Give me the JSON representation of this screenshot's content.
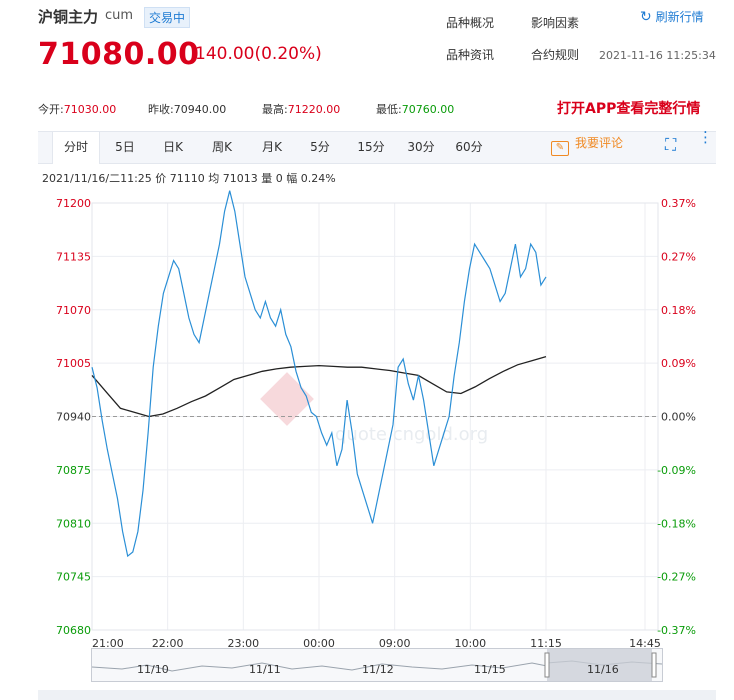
{
  "header": {
    "title": "沪铜主力",
    "code": "cum",
    "status": "交易中",
    "links": [
      "品种概况",
      "影响因素",
      "品种资讯",
      "合约规则"
    ],
    "refresh_label": "刷新行情",
    "price": "71080.00",
    "change": "140.00(0.20%)",
    "timestamp": "2021-11-16 11:25:34"
  },
  "stats": {
    "open_label": "今开:",
    "open": "71030.00",
    "prev_label": "昨收:",
    "prev": "70940.00",
    "high_label": "最高:",
    "high": "71220.00",
    "low_label": "最低:",
    "low": "70760.00"
  },
  "app_promo": "打开APP查看完整行情",
  "tabs": [
    "分时",
    "5日",
    "日K",
    "周K",
    "月K",
    "5分",
    "15分",
    "30分",
    "60分"
  ],
  "comment_label": "我要评论",
  "info_line": "2021/11/16/二11:25  价 71110  均 71013  量 0  幅 0.24%",
  "watermark": "quote.cngold.org",
  "colors": {
    "up": "#d9001b",
    "down": "#0a9c0a",
    "price_line": "#2b8fd6",
    "avg_line": "#222222",
    "accent": "#1e7bd3"
  },
  "chart_data": {
    "type": "line",
    "ylim": [
      70680,
      71200
    ],
    "y_ticks": [
      "71200",
      "71135",
      "71070",
      "71005",
      "70940",
      "70875",
      "70810",
      "70745",
      "70680"
    ],
    "pct_ticks": [
      "0.37%",
      "0.27%",
      "0.18%",
      "0.09%",
      "0.00%",
      "-0.09%",
      "-0.18%",
      "-0.27%",
      "-0.37%"
    ],
    "x_ticks": [
      "21:00",
      "22:00",
      "23:00",
      "00:00",
      "09:00",
      "10:00",
      "11:15",
      "14:45"
    ],
    "baseline": 70940,
    "series": [
      {
        "values": [
          71000,
          70975,
          70935,
          70900,
          70870,
          70840,
          70800,
          70770,
          70775,
          70800,
          70850,
          70920,
          71000,
          71050,
          71090,
          71110,
          71130,
          71120,
          71090,
          71060,
          71040,
          71030,
          71060,
          71090,
          71120,
          71150,
          71190,
          71215,
          71190,
          71150,
          71110,
          71090,
          71070,
          71060,
          71080,
          71060,
          71050,
          71070,
          71040,
          71025,
          70995,
          70975,
          70965,
          70945,
          70940,
          70920,
          70905,
          70920,
          70880,
          70900,
          70960,
          70920,
          70870,
          70850,
          70830,
          70810,
          70840,
          70870,
          70900,
          70930,
          71000,
          71010,
          70980,
          70960,
          70990,
          70960,
          70920,
          70880,
          70900,
          70920,
          70940,
          70990,
          71030,
          71080,
          71120,
          71150,
          71140,
          71130,
          71120,
          71100,
          71080,
          71090,
          71120,
          71150,
          71110,
          71120,
          71150,
          71140,
          71100,
          71110
        ]
      },
      {
        "values": [
          70990,
          70970,
          70950,
          70945,
          70940,
          70943,
          70950,
          70958,
          70965,
          70975,
          70985,
          70990,
          70995,
          70998,
          71000,
          71001,
          71002,
          71001,
          71000,
          71000,
          70998,
          70996,
          70993,
          70990,
          70980,
          70970,
          70968,
          70976,
          70986,
          70995,
          71003,
          71008,
          71013
        ]
      }
    ]
  },
  "navigator_labels": [
    "11/10",
    "11/11",
    "11/12",
    "11/15",
    "11/16"
  ]
}
